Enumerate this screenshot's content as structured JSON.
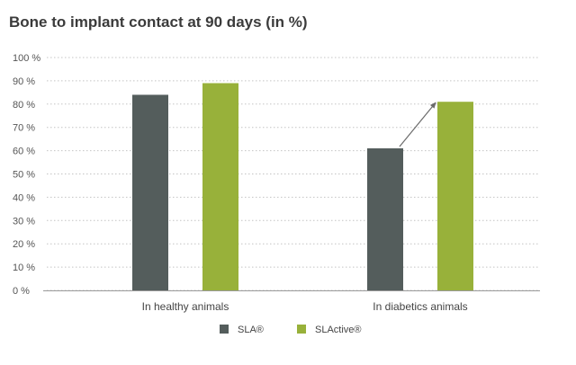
{
  "chart_data": {
    "type": "bar",
    "title": "Bone to implant contact at 90 days (in %)",
    "xlabel": "",
    "ylabel": "",
    "categories": [
      "In healthy animals",
      "In diabetics animals"
    ],
    "series": [
      {
        "name": "SLA®",
        "color": "#545d5c",
        "values": [
          84,
          61
        ]
      },
      {
        "name": "SLActive®",
        "color": "#98b13a",
        "values": [
          89,
          81
        ]
      }
    ],
    "y_ticks": [
      "0 %",
      "10 %",
      "20 %",
      "30 %",
      "40 %",
      "50 %",
      "60 %",
      "70 %",
      "80 %",
      "90 %",
      "100 %"
    ],
    "ylim": [
      0,
      100
    ],
    "grid": true,
    "legend": "bottom-center",
    "annotations": [
      {
        "type": "arrow",
        "category": "In diabetics animals",
        "from_series": "SLA®",
        "to_series": "SLActive®"
      }
    ]
  }
}
